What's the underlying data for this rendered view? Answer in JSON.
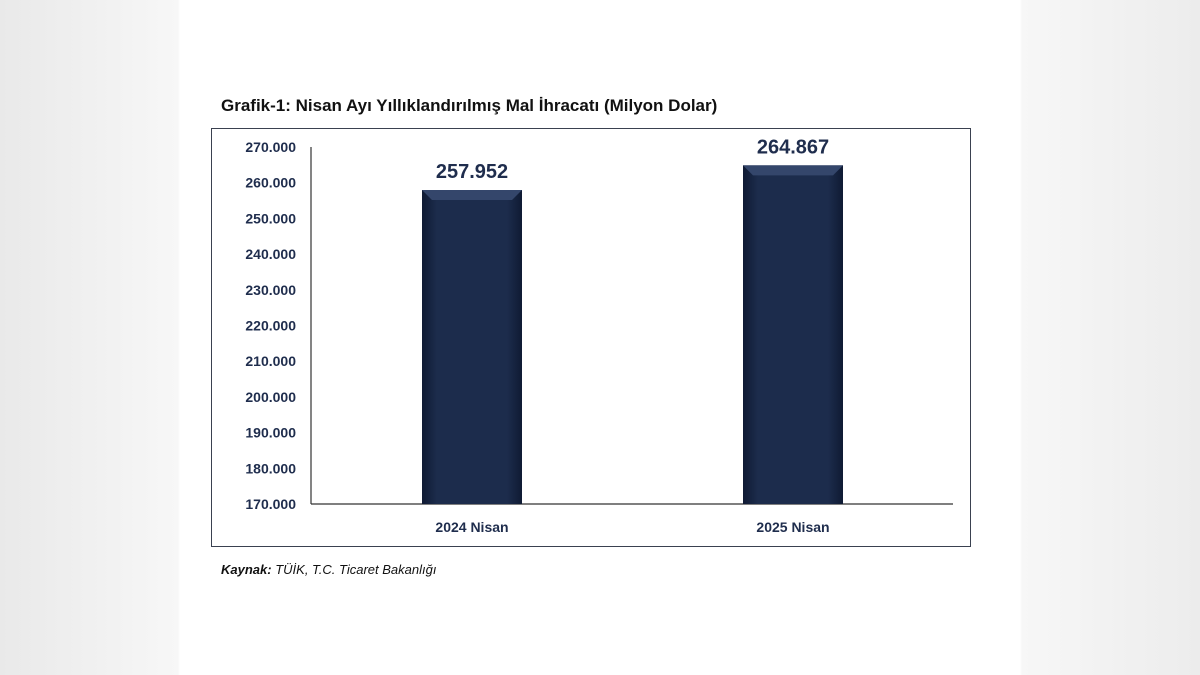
{
  "chart_data": {
    "type": "bar",
    "title": "Grafik-1: Nisan Ayı Yıllıklandırılmış Mal İhracatı (Milyon Dolar)",
    "categories": [
      "2024 Nisan",
      "2025 Nisan"
    ],
    "values": [
      257952,
      264867
    ],
    "data_labels": [
      "257.952",
      "264.867"
    ],
    "ylim": [
      170000,
      270000
    ],
    "yticks": [
      170000,
      180000,
      190000,
      200000,
      210000,
      220000,
      230000,
      240000,
      250000,
      260000,
      270000
    ],
    "ytick_labels": [
      "170.000",
      "180.000",
      "190.000",
      "200.000",
      "210.000",
      "220.000",
      "230.000",
      "240.000",
      "250.000",
      "260.000",
      "270.000"
    ],
    "xlabel": "",
    "ylabel": "",
    "grid": false,
    "bar_color": "#1c2c4c",
    "source_label": "Kaynak:",
    "source_text": "TÜİK, T.C. Ticaret Bakanlığı"
  }
}
